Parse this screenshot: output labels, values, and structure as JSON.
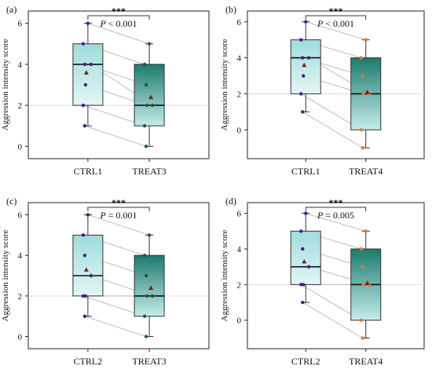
{
  "figure": {
    "ylabel": "Aggression intensity score"
  },
  "colors": {
    "ctrl_box_top": "#9fdcdc",
    "ctrl_box_bottom": "#e4f6f6",
    "treat_box_top": "#1d7a6c",
    "treat_box_bottom": "#c5ecec",
    "ctrl_point": "#4b1b86",
    "treat3_point": "#1f5a3b",
    "treat4_point": "#e07a2a",
    "mean_marker": "#7b1f0e",
    "pair_line": "#bcbcbc",
    "gridline": "#d9d9d9"
  },
  "chart_data": [
    {
      "type": "box",
      "panel_label": "(a)",
      "ylabel": "Aggression intensity score",
      "categories": [
        "CTRL1",
        "TREAT3"
      ],
      "ylim": [
        -0.6,
        6.6
      ],
      "yticks": [
        0,
        2,
        4,
        6
      ],
      "gridline_y": 2,
      "significance": {
        "stars": "***",
        "p_text": "P < 0.001"
      },
      "series": [
        {
          "name": "CTRL1",
          "points": [
            6,
            5,
            4,
            4,
            3,
            2,
            1
          ],
          "mean": 3.6,
          "box": {
            "q1": 2,
            "median": 4,
            "q3": 5,
            "whisker_low": 1,
            "whisker_high": 6
          }
        },
        {
          "name": "TREAT3",
          "points": [
            5,
            4,
            3,
            2,
            2,
            1,
            0
          ],
          "mean": 2.4,
          "box": {
            "q1": 1,
            "median": 2,
            "q3": 4,
            "whisker_low": 0,
            "whisker_high": 5
          }
        }
      ]
    },
    {
      "type": "box",
      "panel_label": "(b)",
      "ylabel": "Aggression intensity score",
      "categories": [
        "CTRL1",
        "TREAT4"
      ],
      "ylim": [
        -1.6,
        6.6
      ],
      "yticks": [
        0,
        2,
        4,
        6
      ],
      "gridline_y": 2,
      "significance": {
        "stars": "***",
        "p_text": "P < 0.001"
      },
      "series": [
        {
          "name": "CTRL1",
          "points": [
            6,
            5,
            4,
            4,
            3,
            2,
            1
          ],
          "mean": 3.6,
          "box": {
            "q1": 2,
            "median": 4,
            "q3": 5,
            "whisker_low": 1,
            "whisker_high": 6
          }
        },
        {
          "name": "TREAT4",
          "points": [
            5,
            4,
            3,
            2,
            2,
            0,
            -1
          ],
          "mean": 2.1,
          "box": {
            "q1": 0,
            "median": 2,
            "q3": 4,
            "whisker_low": -1,
            "whisker_high": 5
          }
        }
      ]
    },
    {
      "type": "box",
      "panel_label": "(c)",
      "ylabel": "Aggression intensity score",
      "categories": [
        "CTRL2",
        "TREAT3"
      ],
      "ylim": [
        -0.6,
        6.6
      ],
      "yticks": [
        0,
        2,
        4,
        6
      ],
      "gridline_y": 2,
      "significance": {
        "stars": "***",
        "p_text": "P = 0.001"
      },
      "series": [
        {
          "name": "CTRL2",
          "points": [
            6,
            5,
            4,
            3,
            2,
            2,
            1
          ],
          "mean": 3.3,
          "box": {
            "q1": 2,
            "median": 3,
            "q3": 5,
            "whisker_low": 1,
            "whisker_high": 6
          }
        },
        {
          "name": "TREAT3",
          "points": [
            5,
            4,
            3,
            2,
            2,
            1,
            0
          ],
          "mean": 2.4,
          "box": {
            "q1": 1,
            "median": 2,
            "q3": 4,
            "whisker_low": 0,
            "whisker_high": 5
          }
        }
      ]
    },
    {
      "type": "box",
      "panel_label": "(d)",
      "ylabel": "Aggression intensity score",
      "categories": [
        "CTRL2",
        "TREAT4"
      ],
      "ylim": [
        -1.6,
        6.6
      ],
      "yticks": [
        0,
        2,
        4,
        6
      ],
      "gridline_y": 2,
      "significance": {
        "stars": "***",
        "p_text": "P = 0.005"
      },
      "series": [
        {
          "name": "CTRL2",
          "points": [
            6,
            5,
            4,
            3,
            2,
            2,
            1
          ],
          "mean": 3.3,
          "box": {
            "q1": 2,
            "median": 3,
            "q3": 5,
            "whisker_low": 1,
            "whisker_high": 6
          }
        },
        {
          "name": "TREAT4",
          "points": [
            5,
            4,
            3,
            2,
            2,
            0,
            -1
          ],
          "mean": 2.1,
          "box": {
            "q1": 0,
            "median": 2,
            "q3": 4,
            "whisker_low": -1,
            "whisker_high": 5
          }
        }
      ]
    }
  ]
}
